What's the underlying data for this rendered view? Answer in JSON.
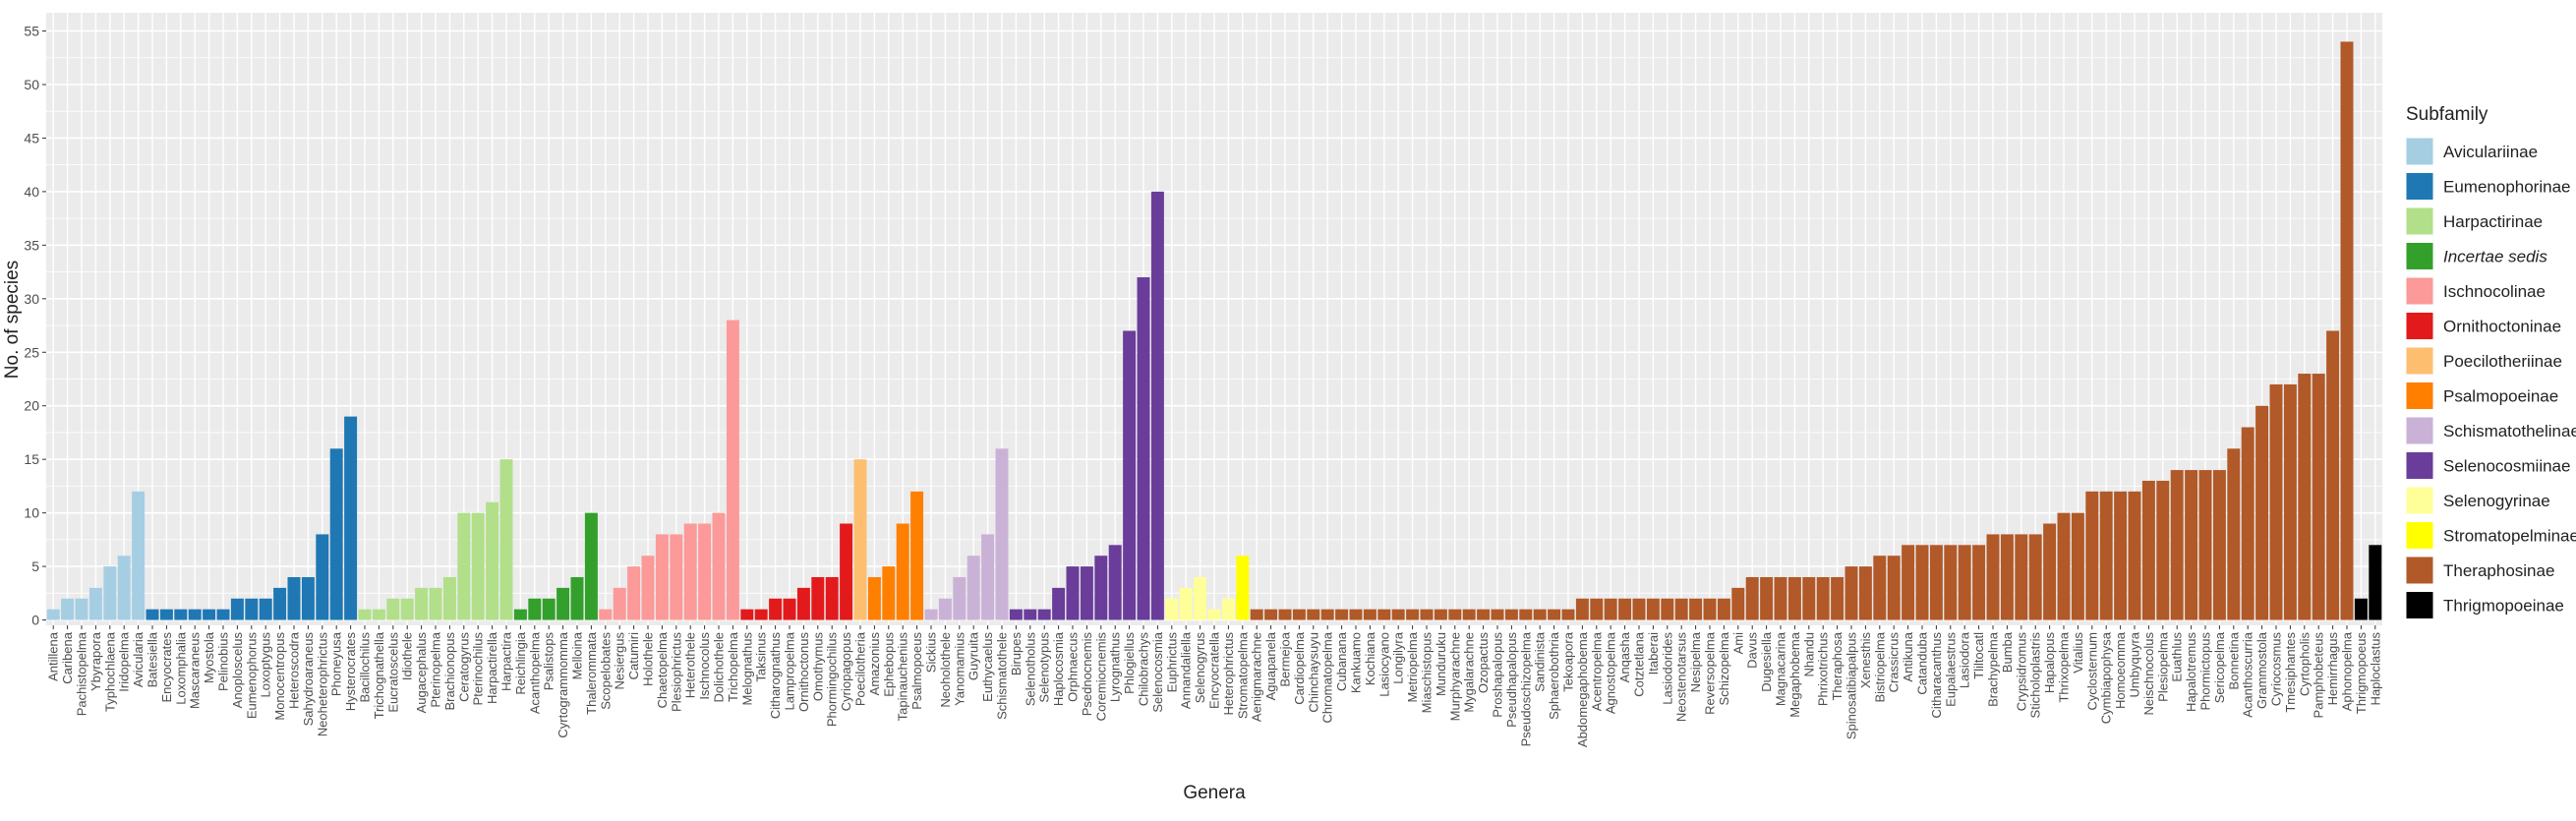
{
  "chart_data": {
    "type": "bar",
    "y_label": "No. of species",
    "x_label": "Genera",
    "legend_title": "Subfamily",
    "ylim": [
      -0.5,
      56.7
    ],
    "yticks": [
      0,
      5,
      10,
      15,
      20,
      25,
      30,
      35,
      40,
      45,
      50,
      55
    ],
    "grid": true,
    "legend": "right",
    "series": [
      {
        "name": "Aviculariinae",
        "color": "#a6cee3",
        "categories": [
          "Antillena",
          "Caribena",
          "Pachistopelma",
          "Ybyrapora",
          "Typhochlaena",
          "Iridopelma",
          "Avicularia"
        ],
        "values": [
          1,
          2,
          2,
          3,
          5,
          6,
          12
        ]
      },
      {
        "name": "Eumenophorinae",
        "color": "#1f78b4",
        "categories": [
          "Batesiella",
          "Encyocrates",
          "Loxomphalia",
          "Mascaraneus",
          "Myostola",
          "Pelinobius",
          "Anoploscelus",
          "Eumenophorus",
          "Loxoptygus",
          "Monocentropus",
          "Heteroscodra",
          "Sahydroaraneus",
          "Neoheterophrictus",
          "Phoneyusa",
          "Hysterocrates"
        ],
        "values": [
          1,
          1,
          1,
          1,
          1,
          1,
          2,
          2,
          2,
          3,
          4,
          4,
          8,
          16,
          19
        ]
      },
      {
        "name": "Harpactirinae",
        "color": "#b2df8a",
        "categories": [
          "Bacillochilus",
          "Trichognathella",
          "Eucratoscelus",
          "Idiothele",
          "Augacephalus",
          "Pterinopelma",
          "Brachionopus",
          "Ceratogyrus",
          "Pterinochilus",
          "Harpactirella",
          "Harpactira"
        ],
        "values": [
          1,
          1,
          2,
          2,
          3,
          3,
          4,
          10,
          10,
          11,
          15
        ]
      },
      {
        "name": "Incertae sedis",
        "italic": true,
        "color": "#33a02c",
        "categories": [
          "Reichlingia",
          "Acanthopelma",
          "Psalistops",
          "Cyrtogrammomma",
          "Melloina",
          "Thalerommata"
        ],
        "values": [
          1,
          2,
          2,
          3,
          4,
          10
        ]
      },
      {
        "name": "Ischnocolinae",
        "color": "#fb9a99",
        "categories": [
          "Scopelobates",
          "Nesiergus",
          "Catumiri",
          "Holothele",
          "Chaetopelma",
          "Plesiophrictus",
          "Heterothele",
          "Ischnocolus",
          "Dolichothele",
          "Trichopelma"
        ],
        "values": [
          1,
          3,
          5,
          6,
          8,
          8,
          9,
          9,
          10,
          28
        ]
      },
      {
        "name": "Ornithoctoninae",
        "color": "#e31a1c",
        "categories": [
          "Melognathus",
          "Taksinus",
          "Citharognathus",
          "Lampropelma",
          "Ornithoctonus",
          "Omothymus",
          "Phormingochilus",
          "Cyriopagopus"
        ],
        "values": [
          1,
          1,
          2,
          2,
          3,
          4,
          4,
          9
        ]
      },
      {
        "name": "Poecilotheriinae",
        "color": "#fdbf6f",
        "categories": [
          "Poecilotheria"
        ],
        "values": [
          15
        ]
      },
      {
        "name": "Psalmopoeinae",
        "color": "#ff7f00",
        "categories": [
          "Amazonius",
          "Ephebopus",
          "Tapinauchenius",
          "Psalmopoeus"
        ],
        "values": [
          4,
          5,
          9,
          12
        ]
      },
      {
        "name": "Schismatothelinae",
        "color": "#cab2d6",
        "categories": [
          "Sickius",
          "Neoholothele",
          "Yanomamius",
          "Guyruita",
          "Euthycaelus",
          "Schismatothele"
        ],
        "values": [
          1,
          2,
          4,
          6,
          8,
          16
        ]
      },
      {
        "name": "Selenocosmiinae",
        "color": "#6a3d9a",
        "categories": [
          "Birupes",
          "Selenotholus",
          "Selenotypus",
          "Haplocosmia",
          "Orphnaecus",
          "Psednocnemis",
          "Coremiocnemis",
          "Lyrognathus",
          "Phlogiellus",
          "Chilobrachys",
          "Selenocosmia"
        ],
        "values": [
          1,
          1,
          1,
          3,
          5,
          5,
          6,
          7,
          27,
          32,
          40
        ]
      },
      {
        "name": "Selenogyrinae",
        "color": "#ffff99",
        "categories": [
          "Euphrictus",
          "Annandaliella",
          "Selenogyrus",
          "Encyocratella",
          "Heterophrictus"
        ],
        "values": [
          2,
          3,
          4,
          1,
          2
        ]
      },
      {
        "name": "Stromatopelminae",
        "color": "#ffff00",
        "categories": [
          "Stromatopelma"
        ],
        "values": [
          6
        ]
      },
      {
        "name": "Theraphosinae",
        "color": "#b15928",
        "categories": [
          "Aenigmarachne",
          "Aguapanela",
          "Bermejoa",
          "Cardiopelma",
          "Chinchaysuyu",
          "Chromatopelma",
          "Cubanana",
          "Kankuamo",
          "Kochiana",
          "Lasiocyano",
          "Longilyra",
          "Metriopelma",
          "Miaschistopus",
          "Munduruku",
          "Murphyarachne",
          "Mygalarachne",
          "Ozopactus",
          "Proshapalopus",
          "Pseudhapalopus",
          "Pseudoschizopelma",
          "Sandinista",
          "Sphaerobothria",
          "Tekoapora",
          "Abdomegaphobema",
          "Acentropelma",
          "Agnostopelma",
          "Anqasha",
          "Cotztetlana",
          "Itaberai",
          "Lasiodorides",
          "Neostenotarsus",
          "Nesipelma",
          "Reversopelma",
          "Schizopelma",
          "Ami",
          "Davus",
          "Dugesiella",
          "Magnacarina",
          "Megaphobema",
          "Nhandu",
          "Phrixotrichus",
          "Theraphosa",
          "Spinosatibiapalpus",
          "Xenesthis",
          "Bistriopelma",
          "Crassicrus",
          "Antikuna",
          "Catanduba",
          "Citharacanthus",
          "Eupalaestrus",
          "Lasiodora",
          "Tliltocatl",
          "Brachypelma",
          "Bumba",
          "Crypsidromus",
          "Sticholoplastris",
          "Hapalopus",
          "Thrixopelma",
          "Vitalius",
          "Cyclosternum",
          "Cymbiapophysa",
          "Homoeomma",
          "Umbyquyra",
          "Neischnocolus",
          "Plesiopelma",
          "Euathlus",
          "Hapalotremus",
          "Phormictopus",
          "Sericopelma",
          "Bonnetina",
          "Acanthoscurria",
          "Grammostola",
          "Cyriocosmus",
          "Tmesiphantes",
          "Cyrtopholis",
          "Pamphobeteus",
          "Hemirrhagus",
          "Aphonopelma"
        ],
        "values": [
          1,
          1,
          1,
          1,
          1,
          1,
          1,
          1,
          1,
          1,
          1,
          1,
          1,
          1,
          1,
          1,
          1,
          1,
          1,
          1,
          1,
          1,
          1,
          2,
          2,
          2,
          2,
          2,
          2,
          2,
          2,
          2,
          2,
          2,
          3,
          4,
          4,
          4,
          4,
          4,
          4,
          4,
          5,
          5,
          6,
          6,
          7,
          7,
          7,
          7,
          7,
          7,
          8,
          8,
          8,
          8,
          9,
          10,
          10,
          12,
          12,
          12,
          12,
          13,
          13,
          14,
          14,
          14,
          14,
          16,
          18,
          20,
          22,
          22,
          23,
          23,
          27,
          54
        ]
      },
      {
        "name": "Thrigmopoeinae",
        "color": "#000000",
        "categories": [
          "Thrigmopoeus",
          "Haploclastus"
        ],
        "values": [
          2,
          7
        ]
      }
    ]
  }
}
